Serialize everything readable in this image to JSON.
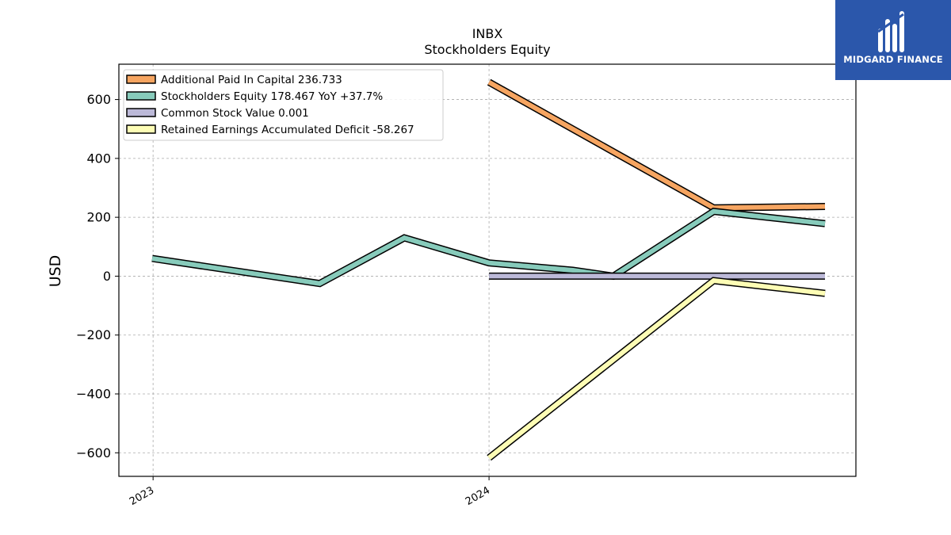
{
  "chart_data": {
    "type": "line",
    "title": "INBX",
    "subtitle": "Stockholders  Equity",
    "ylabel": "USD",
    "xlabel": "",
    "x_ticks": [
      "2023",
      "2024"
    ],
    "y_ticks": [
      "600",
      "400",
      "200",
      "0",
      "−200",
      "−400",
      "−600"
    ],
    "y_tick_values": [
      600,
      400,
      200,
      0,
      -200,
      -400,
      -600
    ],
    "ylim": [
      -680,
      720
    ],
    "grid": true,
    "legend_position": "top-left",
    "series": [
      {
        "name": "Additional Paid In Capital",
        "legend_label": "Additional Paid In Capital  236.733",
        "color": "#f6a561",
        "points": [
          [
            "2024-01-01",
            659
          ],
          [
            "2024-09-01",
            232
          ],
          [
            "2024-12-31",
            236.733
          ]
        ]
      },
      {
        "name": "Stockholders Equity",
        "legend_label": "Stockholders Equity  178.467 YoY +37.7%",
        "color": "#87cbbb",
        "points": [
          [
            "2022-12-31",
            60
          ],
          [
            "2023-07-01",
            -25
          ],
          [
            "2023-10-01",
            130
          ],
          [
            "2024-01-01",
            45
          ],
          [
            "2024-04-01",
            20
          ],
          [
            "2024-05-15",
            0
          ],
          [
            "2024-09-01",
            220
          ],
          [
            "2024-12-31",
            178.467
          ]
        ]
      },
      {
        "name": "Common Stock Value",
        "legend_label": "Common Stock Value  0.001",
        "color": "#bcb9d8",
        "points": [
          [
            "2024-01-01",
            0.001
          ],
          [
            "2024-12-31",
            0.001
          ]
        ]
      },
      {
        "name": "Retained Earnings Accumulated Deficit",
        "legend_label": "Retained Earnings Accumulated Deficit  -58.267",
        "color": "#fdfdb5",
        "points": [
          [
            "2024-01-01",
            -617
          ],
          [
            "2024-09-01",
            -15
          ],
          [
            "2024-12-31",
            -58.267
          ]
        ]
      }
    ]
  },
  "logo": {
    "text": "MIDGARD FINANCE",
    "background": "#2b57ab",
    "icon": "midgard-logo-icon"
  }
}
